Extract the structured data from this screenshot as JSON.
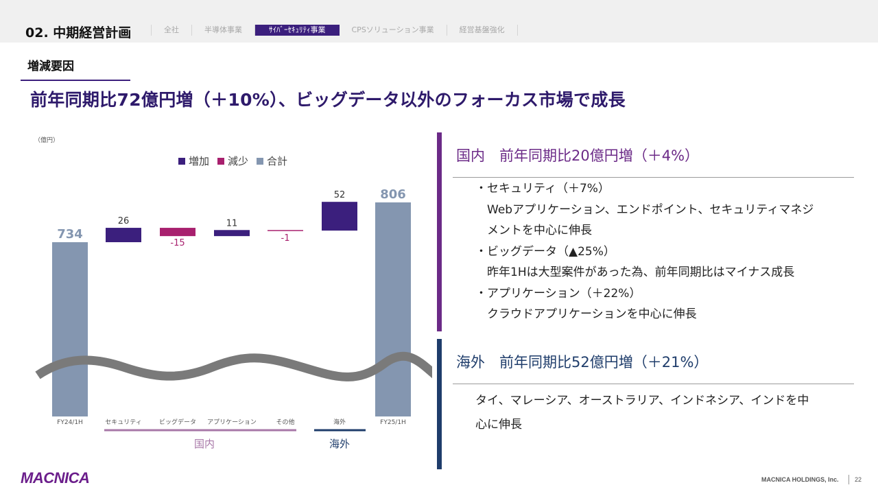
{
  "header": {
    "section_title": "02. 中期経営計画",
    "tabs": [
      {
        "label": "全社",
        "active": false
      },
      {
        "label": "半導体事業",
        "active": false
      },
      {
        "label": "ｻｲﾊﾞｰｾｷｭﾘﾃｨ事業",
        "active": true
      },
      {
        "label": "CPSソリューション事業",
        "active": false
      },
      {
        "label": "経営基盤強化",
        "active": false
      }
    ]
  },
  "sub_heading": "増減要因",
  "headline": "前年同期比72億円増（＋10%）、ビッグデータ以外のフォーカス市場で成長",
  "chart_data": {
    "type": "bar",
    "subtype": "waterfall",
    "unit_label": "（億円）",
    "legend": [
      "増加",
      "減少",
      "合計"
    ],
    "legend_position": "top",
    "categories": [
      "FY24/1H",
      "セキュリティ",
      "ビッグデータ",
      "アプリケーション",
      "その他",
      "海外",
      "FY25/1H"
    ],
    "values": [
      734,
      26,
      -15,
      11,
      -1,
      52,
      806
    ],
    "value_labels": [
      "734",
      "26",
      "-15",
      "11",
      "-1",
      "52",
      "806"
    ],
    "kinds": [
      "total",
      "increase",
      "decrease",
      "increase",
      "decrease",
      "increase",
      "total"
    ],
    "groups": [
      {
        "label": "国内",
        "categories": [
          "セキュリティ",
          "ビッグデータ",
          "アプリケーション",
          "その他"
        ]
      },
      {
        "label": "海外",
        "categories": [
          "海外"
        ]
      }
    ],
    "axis_break": true,
    "grid": false,
    "colors": {
      "increase": "#3b1f7d",
      "decrease": "#a8206e",
      "total": "#8496b0",
      "domestic_group": "#a878a8",
      "overseas_group": "#1f3d6b",
      "break_wave": "#7a7a7a"
    }
  },
  "right_panel": {
    "domestic": {
      "title": "国内　前年同期比20億円増（＋4%）",
      "color": "#6b2a87",
      "bullets": [
        {
          "heading": "・セキュリティ（＋7%）",
          "detail_lines": [
            "Webアプリケーション、エンドポイント、セキュリティマネジ",
            "メントを中心に伸長"
          ]
        },
        {
          "heading": "・ビッグデータ（▲25%）",
          "detail_lines": [
            "昨年1Hは大型案件があった為、前年同期比はマイナス成長"
          ]
        },
        {
          "heading": "・アプリケーション（＋22%）",
          "detail_lines": [
            "クラウドアプリケーションを中心に伸長"
          ]
        }
      ]
    },
    "overseas": {
      "title": "海外　前年同期比52億円増（＋21%）",
      "color": "#1f3d6b",
      "text_lines": [
        "タイ、マレーシア、オーストラリア、インドネシア、インドを中",
        "心に伸長"
      ]
    }
  },
  "footer": {
    "logo": "MACNICA",
    "company": "MACNICA HOLDINGS, Inc.",
    "page": "22"
  }
}
